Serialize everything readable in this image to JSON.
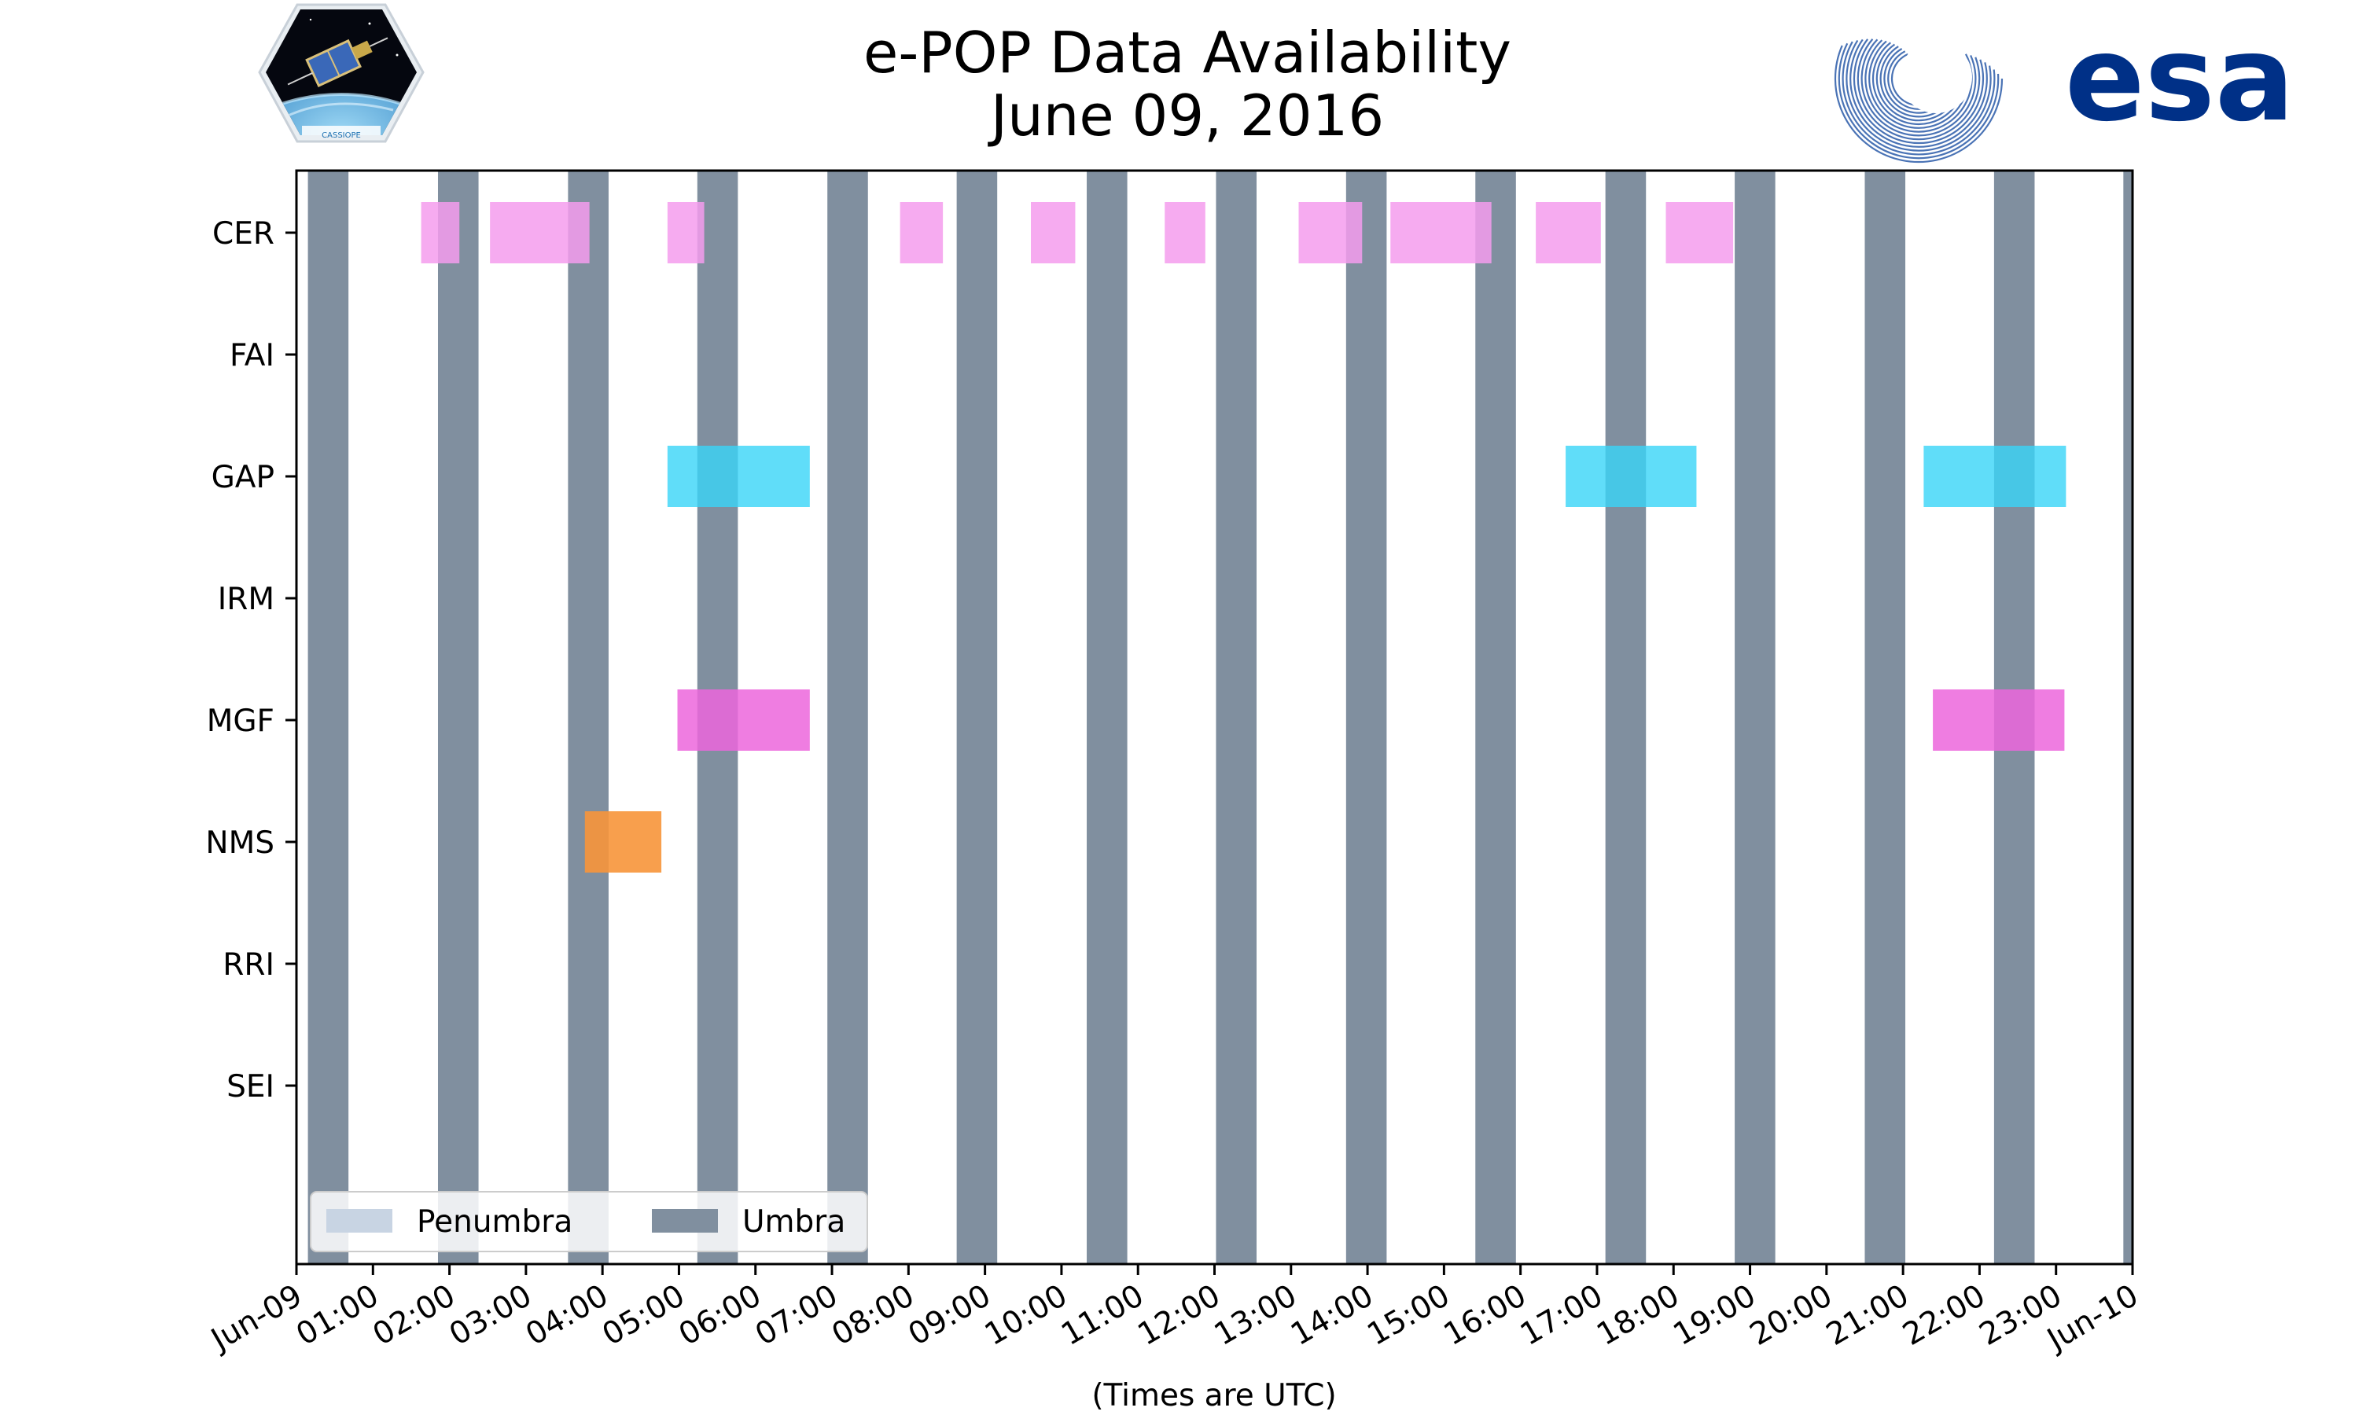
{
  "header": {
    "title_line1": "e-POP Data Availability",
    "title_line2": "June 09, 2016",
    "left_logo": {
      "name": "cassiope-mission-patch",
      "text": "CASSIOPE"
    },
    "right_logo": {
      "name": "esa-logo",
      "text": "esa"
    }
  },
  "chart_data": {
    "type": "timeline",
    "title": "e-POP Data Availability\nJune 09, 2016",
    "xlabel": "(Times are UTC)",
    "ylabel": "",
    "x_unit": "hours since 2016-06-09 00:00 UTC",
    "xlim": [
      0,
      24
    ],
    "x_ticks": [
      "Jun-09",
      "01:00",
      "02:00",
      "03:00",
      "04:00",
      "05:00",
      "06:00",
      "07:00",
      "08:00",
      "09:00",
      "10:00",
      "11:00",
      "12:00",
      "13:00",
      "14:00",
      "15:00",
      "16:00",
      "17:00",
      "18:00",
      "19:00",
      "20:00",
      "21:00",
      "22:00",
      "23:00",
      "Jun-10"
    ],
    "instruments": [
      "CER",
      "FAI",
      "GAP",
      "IRM",
      "MGF",
      "NMS",
      "RRI",
      "SEI"
    ],
    "umbra": [
      [
        0.15,
        0.68
      ],
      [
        1.85,
        2.38
      ],
      [
        3.55,
        4.08
      ],
      [
        5.24,
        5.77
      ],
      [
        6.94,
        7.47
      ],
      [
        8.63,
        9.16
      ],
      [
        10.33,
        10.86
      ],
      [
        12.02,
        12.55
      ],
      [
        13.72,
        14.25
      ],
      [
        15.41,
        15.94
      ],
      [
        17.11,
        17.64
      ],
      [
        18.8,
        19.33
      ],
      [
        20.5,
        21.03
      ],
      [
        22.19,
        22.72
      ],
      [
        23.88,
        24.0
      ]
    ],
    "penumbra": [],
    "series": [
      {
        "name": "CER",
        "color": "#f59ced",
        "opacity": 0.85,
        "intervals": [
          [
            1.63,
            2.13
          ],
          [
            2.53,
            3.83
          ],
          [
            4.85,
            5.33
          ],
          [
            7.89,
            8.45
          ],
          [
            9.6,
            10.18
          ],
          [
            11.35,
            11.88
          ],
          [
            13.1,
            13.93
          ],
          [
            14.3,
            15.62
          ],
          [
            16.2,
            17.05
          ],
          [
            17.9,
            18.78
          ]
        ]
      },
      {
        "name": "FAI",
        "color": "#f59ced",
        "opacity": 0.85,
        "intervals": []
      },
      {
        "name": "GAP",
        "color": "#38d5f8",
        "opacity": 0.8,
        "intervals": [
          [
            4.85,
            6.71
          ],
          [
            16.59,
            18.3
          ],
          [
            21.27,
            23.13
          ]
        ]
      },
      {
        "name": "IRM",
        "color": "#38d5f8",
        "opacity": 0.8,
        "intervals": []
      },
      {
        "name": "MGF",
        "color": "#ec66dc",
        "opacity": 0.85,
        "intervals": [
          [
            4.98,
            6.71
          ],
          [
            21.39,
            23.11
          ]
        ]
      },
      {
        "name": "NMS",
        "color": "#f7953a",
        "opacity": 0.9,
        "intervals": [
          [
            3.77,
            4.77
          ]
        ]
      },
      {
        "name": "RRI",
        "color": "#999999",
        "opacity": 0.8,
        "intervals": []
      },
      {
        "name": "SEI",
        "color": "#999999",
        "opacity": 0.8,
        "intervals": []
      }
    ],
    "legend": {
      "placement": "lower-left",
      "entries": [
        {
          "label": "Penumbra",
          "color": "#c8d4e3"
        },
        {
          "label": "Umbra",
          "color": "#808f9f"
        }
      ]
    },
    "colors": {
      "umbra": "#808f9f",
      "penumbra": "#c8d4e3"
    }
  }
}
